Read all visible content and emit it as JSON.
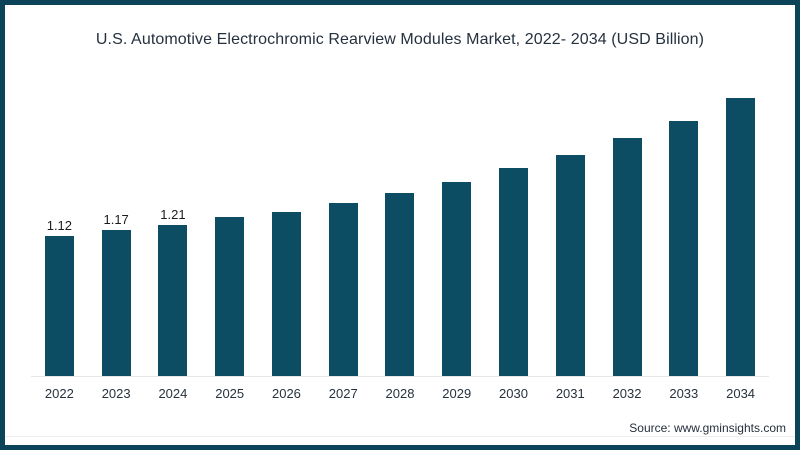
{
  "title": "U.S. Automotive Electrochromic Rearview Modules Market, 2022- 2034 (USD Billion)",
  "source": "Source: www.gminsights.com",
  "colors": {
    "bar": "#0d4d63",
    "frame_border": "#0b4458",
    "title_text": "#24313f",
    "value_label_text": "#1c1c1c",
    "axis_tick_text": "#26323e",
    "baseline": "#e7e7e7",
    "background": "#ffffff"
  },
  "chart_data": {
    "type": "bar",
    "title": "U.S. Automotive Electrochromic Rearview Modules Market, 2022- 2034 (USD Billion)",
    "categories": [
      "2022",
      "2023",
      "2024",
      "2025",
      "2026",
      "2027",
      "2028",
      "2029",
      "2030",
      "2031",
      "2032",
      "2033",
      "2034"
    ],
    "values": [
      1.12,
      1.17,
      1.21,
      1.27,
      1.31,
      1.38,
      1.46,
      1.55,
      1.66,
      1.77,
      1.9,
      2.04,
      2.22
    ],
    "value_labels": [
      "1.12",
      "1.17",
      "1.21",
      "",
      "",
      "",
      "",
      "",
      "",
      "",
      "",
      "",
      ""
    ],
    "xlabel": "",
    "ylabel": "USD Billion",
    "ylim": [
      0,
      2.3
    ],
    "y_axis_visible": false,
    "grid": false,
    "legend": false,
    "bar_color": "#0d4d63"
  }
}
